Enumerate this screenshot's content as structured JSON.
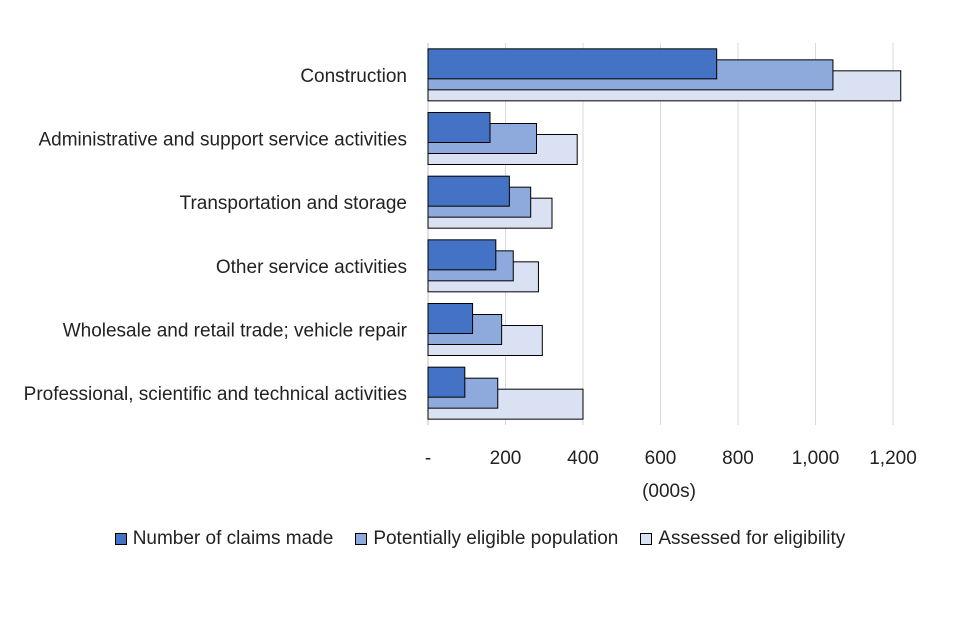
{
  "chart_data": {
    "type": "bar",
    "orientation": "horizontal",
    "categories": [
      "Construction",
      "Administrative and support service activities",
      "Transportation and storage",
      "Other service activities",
      "Wholesale and retail trade; vehicle repair",
      "Professional, scientific and technical activities"
    ],
    "series": [
      {
        "name": "Number of claims made",
        "color": "#4472C4",
        "values": [
          745,
          160,
          210,
          175,
          115,
          95
        ]
      },
      {
        "name": "Potentially eligible population",
        "color": "#8EA9DB",
        "values": [
          1045,
          280,
          265,
          220,
          190,
          180
        ]
      },
      {
        "name": "Assessed for eligibility",
        "color": "#D9E1F2",
        "values": [
          1220,
          385,
          320,
          285,
          295,
          400
        ]
      }
    ],
    "xlim": [
      0,
      1200
    ],
    "xticks": [
      0,
      200,
      400,
      600,
      800,
      1000,
      1200
    ],
    "xtick_labels": [
      "-",
      "200",
      "400",
      "600",
      "800",
      "1,000",
      "1,200"
    ],
    "xlabel": "(000s)",
    "ylabel": "",
    "title": "",
    "grid": "vertical gridlines",
    "legend_position": "bottom"
  }
}
